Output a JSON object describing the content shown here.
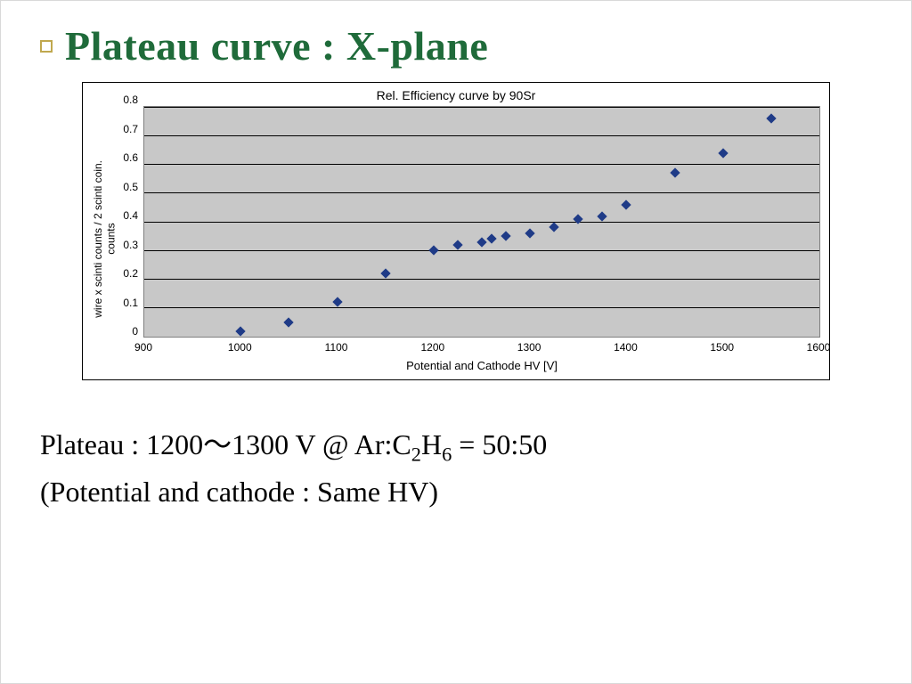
{
  "title": "Plateau curve : X-plane",
  "title_color": "#1f6b3a",
  "bullet_border_color": "#c0a84e",
  "chart": {
    "type": "scatter",
    "title": "Rel. Efficiency curve by 90Sr",
    "title_fontsize": 14,
    "ylabel": "wire x scinti counts / 2 scinti coin.\ncounts",
    "xlabel": "Potential and Cathode HV [V]",
    "label_fontsize": 12,
    "tick_fontsize": 12,
    "xlim": [
      900,
      1600
    ],
    "ylim": [
      0,
      0.8
    ],
    "xticks": [
      900,
      1000,
      1100,
      1200,
      1300,
      1400,
      1500,
      1600
    ],
    "yticks": [
      0,
      0.1,
      0.2,
      0.3,
      0.4,
      0.5,
      0.6,
      0.7,
      0.8
    ],
    "plot_bg": "#c8c8c8",
    "outer_border_color": "#000000",
    "plot_border_color": "#808080",
    "grid_color": "#000000",
    "marker_color": "#1f3b87",
    "marker_style": "diamond",
    "marker_size": 8,
    "points": [
      {
        "x": 1000,
        "y": 0.02
      },
      {
        "x": 1050,
        "y": 0.05
      },
      {
        "x": 1100,
        "y": 0.12
      },
      {
        "x": 1150,
        "y": 0.22
      },
      {
        "x": 1200,
        "y": 0.3
      },
      {
        "x": 1225,
        "y": 0.32
      },
      {
        "x": 1250,
        "y": 0.33
      },
      {
        "x": 1260,
        "y": 0.34
      },
      {
        "x": 1275,
        "y": 0.35
      },
      {
        "x": 1300,
        "y": 0.36
      },
      {
        "x": 1325,
        "y": 0.38
      },
      {
        "x": 1350,
        "y": 0.41
      },
      {
        "x": 1375,
        "y": 0.42
      },
      {
        "x": 1400,
        "y": 0.46
      },
      {
        "x": 1450,
        "y": 0.57
      },
      {
        "x": 1500,
        "y": 0.64
      },
      {
        "x": 1550,
        "y": 0.76
      }
    ]
  },
  "caption_line1_html": "Plateau : 1200～1300 V @ Ar:C<sub>2</sub>H<sub>6</sub> = 50:50",
  "caption_line2": "(Potential and cathode : Same HV)"
}
